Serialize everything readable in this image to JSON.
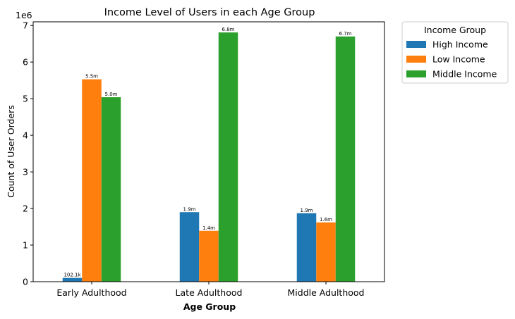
{
  "chart_data": {
    "type": "bar",
    "title": "Income Level of Users in each Age Group",
    "xlabel": "Age Group",
    "ylabel": "Count of User Orders",
    "y_offset_text": "1e6",
    "categories": [
      "Early Adulthood",
      "Late Adulthood",
      "Middle Adulthood"
    ],
    "ylim": [
      0,
      7100000
    ],
    "yticks": [
      0,
      1000000,
      2000000,
      3000000,
      4000000,
      5000000,
      6000000,
      7000000
    ],
    "ytick_labels": [
      "0",
      "1",
      "2",
      "3",
      "4",
      "5",
      "6",
      "7"
    ],
    "series": [
      {
        "name": "High Income",
        "color": "#1f77b4",
        "values": [
          102100,
          1900000,
          1870000
        ],
        "labels": [
          "102.1k",
          "1.9m",
          "1.9m"
        ]
      },
      {
        "name": "Low Income",
        "color": "#ff7f0e",
        "values": [
          5530000,
          1390000,
          1620000
        ],
        "labels": [
          "5.5m",
          "1.4m",
          "1.6m"
        ]
      },
      {
        "name": "Middle Income",
        "color": "#2ca02c",
        "values": [
          5040000,
          6810000,
          6700000
        ],
        "labels": [
          "5.0m",
          "6.8m",
          "6.7m"
        ]
      }
    ],
    "legend": {
      "title": "Income Group",
      "placement": "outside-top-right"
    },
    "grid": false
  }
}
